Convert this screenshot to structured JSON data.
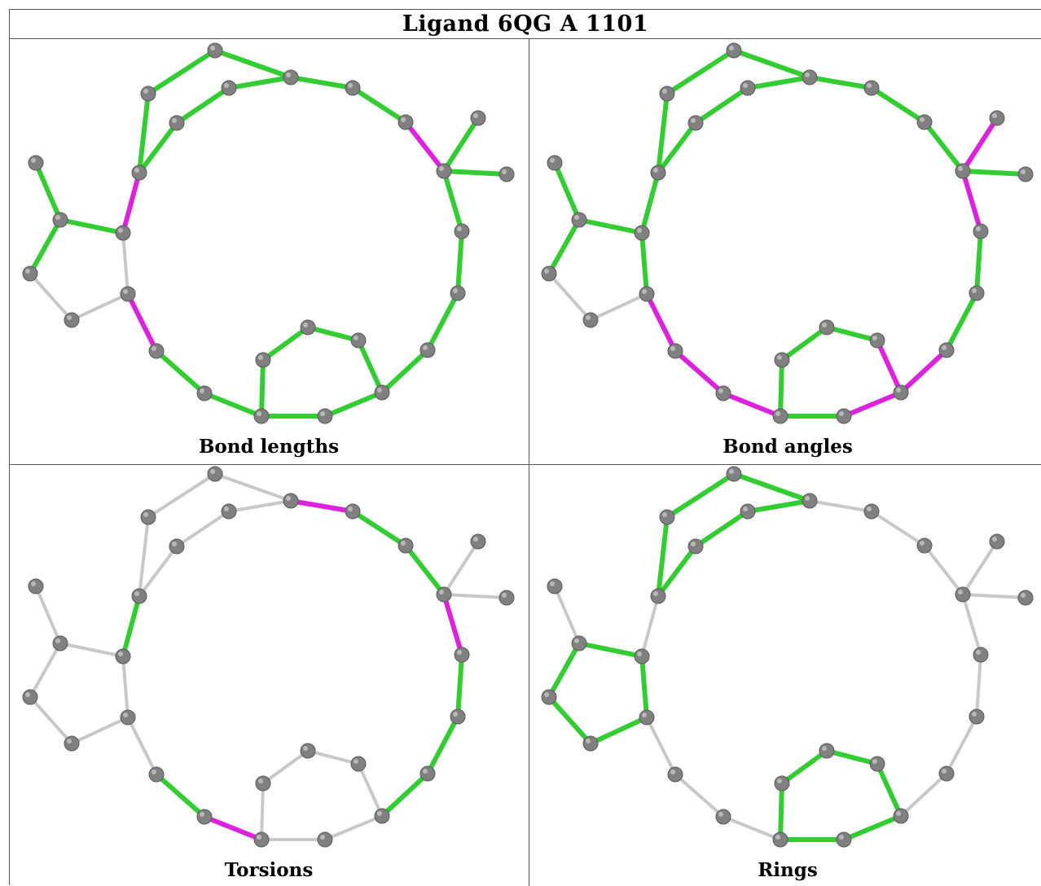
{
  "title": "Ligand 6QG A 1101",
  "panels": [
    {
      "id": "bond-lengths",
      "caption": "Bond lengths"
    },
    {
      "id": "bond-angles",
      "caption": "Bond angles"
    },
    {
      "id": "torsions",
      "caption": "Torsions"
    },
    {
      "id": "rings",
      "caption": "Rings"
    }
  ],
  "colors": {
    "good": "#33cc33",
    "outlier": "#dd22dd",
    "neutral": "#c8c8c8",
    "atom": "#808080"
  },
  "bonds": [
    [
      "a1",
      "a2"
    ],
    [
      "a2",
      "a3"
    ],
    [
      "a3",
      "a4"
    ],
    [
      "a3",
      "a5"
    ],
    [
      "a5",
      "a6"
    ],
    [
      "a6",
      "a7"
    ],
    [
      "a7",
      "a8"
    ],
    [
      "a8",
      "a9"
    ],
    [
      "a9",
      "a10"
    ],
    [
      "a10",
      "a11"
    ],
    [
      "a11",
      "a3"
    ],
    [
      "a11",
      "a12"
    ],
    [
      "a12",
      "a13"
    ],
    [
      "a13",
      "a14"
    ],
    [
      "a14",
      "a15"
    ],
    [
      "a15",
      "a16"
    ],
    [
      "a16",
      "a17"
    ],
    [
      "a17",
      "a18"
    ],
    [
      "a18",
      "a19"
    ],
    [
      "a19",
      "a20"
    ],
    [
      "a20",
      "a21"
    ],
    [
      "a21",
      "a22"
    ],
    [
      "a22",
      "a23"
    ],
    [
      "a23",
      "a24"
    ],
    [
      "a24",
      "a25"
    ],
    [
      "a24",
      "a26"
    ],
    [
      "a26",
      "a27"
    ],
    [
      "a27",
      "a28"
    ],
    [
      "a28",
      "a29"
    ],
    [
      "a29",
      "a30"
    ],
    [
      "a30",
      "a31"
    ],
    [
      "a31",
      "a32"
    ],
    [
      "a32",
      "a33"
    ],
    [
      "a33",
      "a26"
    ],
    [
      "a29",
      "a33"
    ],
    [
      "a31",
      "a34"
    ]
  ],
  "panel_colors": [
    [
      "good",
      "good",
      "good",
      "good",
      "good",
      "outlier",
      "good",
      "good",
      "good",
      "good",
      "good",
      "neutral",
      "neutral",
      "neutral",
      "neutral",
      "outlier",
      "good",
      "good",
      "good",
      "good",
      "good",
      "good",
      "good",
      "good",
      "outlier",
      "good",
      "good",
      "good",
      "good",
      "good",
      "good",
      "good",
      "good",
      "good",
      "good",
      "good"
    ],
    [
      "good",
      "good",
      "good",
      "good",
      "good",
      "good",
      "good",
      "good",
      "outlier",
      "good",
      "good",
      "neutral",
      "neutral",
      "good",
      "good",
      "good",
      "outlier",
      "outlier",
      "outlier",
      "outlier",
      "outlier",
      "outlier",
      "outlier",
      "outlier",
      "outlier",
      "outlier",
      "good",
      "good",
      "good",
      "good",
      "good",
      "good",
      "good",
      "good",
      "good",
      "good"
    ],
    [
      "neutral",
      "neutral",
      "neutral",
      "neutral",
      "neutral",
      "good",
      "neutral",
      "neutral",
      "neutral",
      "neutral",
      "neutral",
      "neutral",
      "neutral",
      "neutral",
      "neutral",
      "neutral",
      "good",
      "outlier",
      "neutral",
      "neutral",
      "neutral",
      "good",
      "good",
      "good",
      "neutral",
      "outlier",
      "good",
      "good",
      "neutral",
      "outlier",
      "good",
      "neutral",
      "neutral",
      "neutral",
      "neutral",
      "neutral"
    ],
    [
      "good",
      "good",
      "good",
      "good",
      "good",
      "neutral",
      "neutral",
      "neutral",
      "neutral",
      "neutral",
      "neutral",
      "neutral",
      "neutral",
      "neutral",
      "neutral",
      "neutral",
      "good",
      "good",
      "good",
      "good",
      "good",
      "neutral",
      "neutral",
      "neutral",
      "neutral",
      "neutral",
      "neutral",
      "neutral",
      "neutral",
      "neutral",
      "neutral",
      "neutral",
      "neutral",
      "good",
      "good",
      "good"
    ]
  ]
}
